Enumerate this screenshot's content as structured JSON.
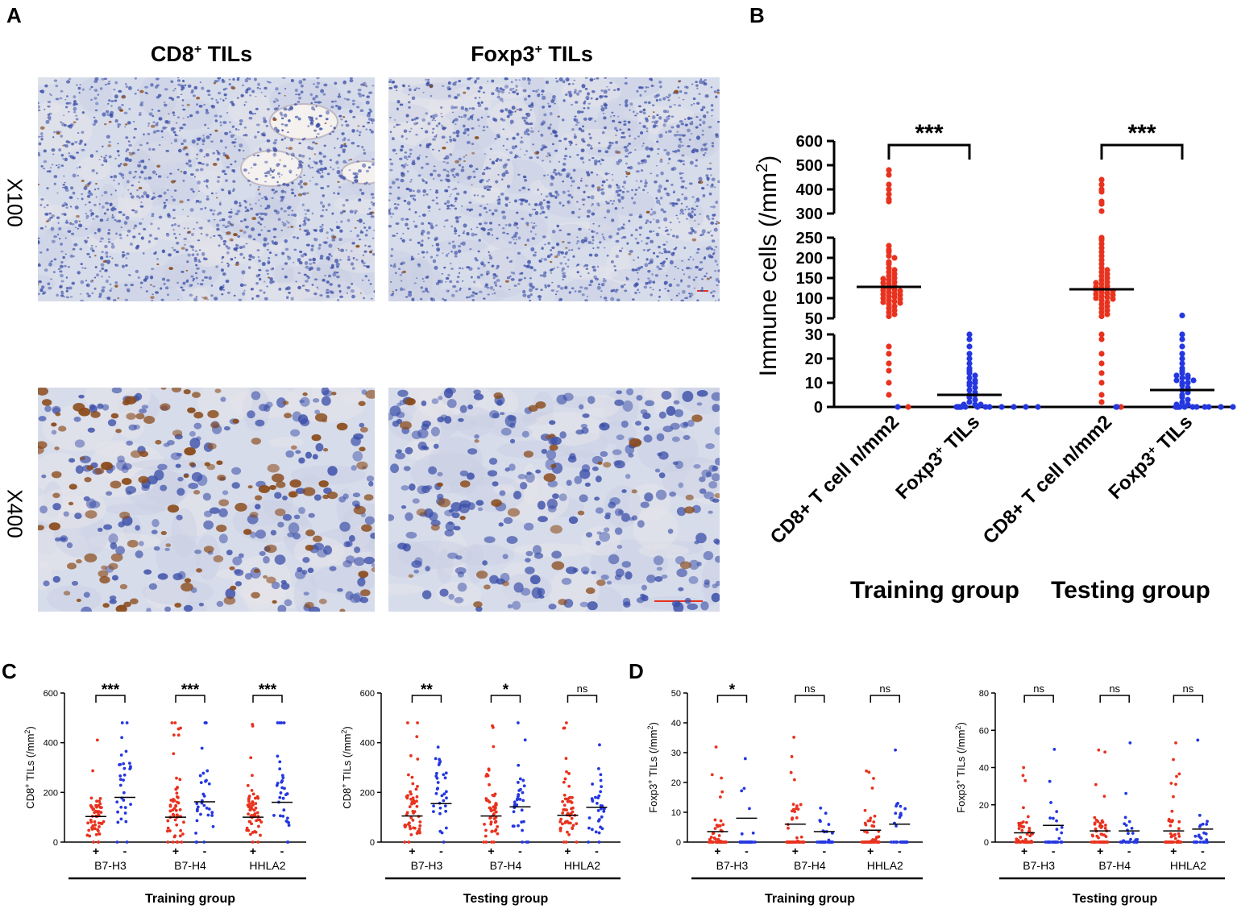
{
  "panels": {
    "A": "A",
    "B": "B",
    "C": "C",
    "D": "D"
  },
  "panelA": {
    "col1": {
      "main": "CD8",
      "sup": "+",
      "rest": " TILs"
    },
    "col2": {
      "main": "Foxp3",
      "sup": "+",
      "rest": " TILs"
    },
    "row1": "X100",
    "row2": "X400"
  },
  "colors": {
    "pos": "#e8321e",
    "neg": "#2437e0",
    "ihc_bg": "#d7dcea",
    "nuclei": "#3a4ea8",
    "brown": "#8a4a1a"
  },
  "chart_data": [
    {
      "id": "B",
      "type": "scatter",
      "ylabel": "Immune cells (/mm",
      "ylabel_sup": "2",
      "ylabel_close": ")",
      "y_segments": [
        {
          "range": [
            0,
            30
          ],
          "ticks": [
            0,
            10,
            20,
            30
          ]
        },
        {
          "range": [
            50,
            250
          ],
          "ticks": [
            50,
            100,
            150,
            200,
            250
          ]
        },
        {
          "range": [
            300,
            600
          ],
          "ticks": [
            300,
            400,
            500,
            600
          ]
        }
      ],
      "categories": [
        "CD8+ T cell n/mm2",
        "Foxp3",
        "CD8+ T cell n/mm2",
        "Foxp3"
      ],
      "category_sup": [
        "",
        "+ TILs",
        "",
        "+ TILs"
      ],
      "groups": [
        "Training group",
        "Testing group"
      ],
      "series": [
        {
          "name": "CD8+ T cell n/mm2",
          "group": "Training group",
          "mean": 128,
          "color": "pos",
          "values": [
            480,
            460,
            420,
            400,
            380,
            360,
            350,
            230,
            220,
            215,
            205,
            200,
            190,
            185,
            175,
            170,
            165,
            160,
            155,
            150,
            148,
            145,
            140,
            138,
            135,
            130,
            128,
            125,
            122,
            120,
            118,
            115,
            112,
            110,
            108,
            105,
            103,
            100,
            98,
            95,
            92,
            90,
            88,
            85,
            80,
            75,
            70,
            65,
            60,
            55,
            25,
            22,
            18,
            15,
            10,
            5,
            0
          ]
        },
        {
          "name": "Foxp3+ TILs",
          "group": "Training group",
          "mean": 5,
          "color": "neg",
          "values": [
            30,
            28,
            25,
            22,
            20,
            18,
            16,
            15,
            14,
            13,
            12,
            11,
            10,
            10,
            9,
            8,
            7,
            6,
            5,
            5,
            4,
            3,
            2,
            1,
            1,
            1,
            0,
            0,
            0,
            0,
            0,
            0,
            0,
            0,
            0,
            0,
            0,
            0,
            0,
            0,
            0,
            0
          ]
        },
        {
          "name": "CD8+ T cell n/mm2",
          "group": "Testing group",
          "mean": 122,
          "color": "pos",
          "values": [
            440,
            420,
            400,
            390,
            350,
            340,
            310,
            250,
            245,
            235,
            225,
            215,
            205,
            195,
            185,
            175,
            170,
            165,
            160,
            155,
            150,
            145,
            140,
            138,
            135,
            130,
            128,
            125,
            122,
            120,
            118,
            115,
            112,
            110,
            108,
            105,
            102,
            100,
            98,
            95,
            90,
            85,
            80,
            75,
            70,
            65,
            60,
            55,
            30,
            28,
            22,
            18,
            14,
            10,
            5,
            2,
            0
          ]
        },
        {
          "name": "Foxp3+ TILs",
          "group": "Testing group",
          "mean": 7,
          "color": "neg",
          "values": [
            57,
            30,
            28,
            25,
            22,
            20,
            18,
            16,
            15,
            14,
            13,
            13,
            12,
            12,
            11,
            11,
            10,
            10,
            9,
            8,
            7,
            6,
            5,
            4,
            3,
            2,
            1,
            1,
            0,
            0,
            0,
            0,
            0,
            0,
            0,
            0,
            0,
            0,
            0,
            0,
            0,
            0,
            0,
            0
          ]
        }
      ],
      "significance": [
        "***",
        "***"
      ]
    },
    {
      "id": "C-training",
      "type": "scatter",
      "ylabel": "CD8",
      "ylabel_sup": "+",
      "ylabel_rest": " TILs (/mm",
      "ylabel_sup2": "2",
      "ylabel_close": ")",
      "ylim": [
        0,
        600
      ],
      "yticks": [
        0,
        200,
        400,
        600
      ],
      "markers": [
        "B7-H3",
        "B7-H4",
        "HHLA2"
      ],
      "signs": [
        "+",
        "-"
      ],
      "group": "Training group",
      "means": [
        [
          103,
          180
        ],
        [
          100,
          162
        ],
        [
          100,
          160
        ]
      ],
      "significance": [
        "***",
        "***",
        "***"
      ]
    },
    {
      "id": "C-testing",
      "type": "scatter",
      "ylabel": "CD8",
      "ylabel_sup": "+",
      "ylabel_rest": " TILs (/mm",
      "ylabel_sup2": "2",
      "ylabel_close": ")",
      "ylim": [
        0,
        600
      ],
      "yticks": [
        0,
        200,
        400,
        600
      ],
      "markers": [
        "B7-H3",
        "B7-H4",
        "HHLA2"
      ],
      "signs": [
        "+",
        "-"
      ],
      "group": "Testing group",
      "means": [
        [
          105,
          155
        ],
        [
          105,
          142
        ],
        [
          108,
          140
        ]
      ],
      "significance": [
        "**",
        "*",
        "ns"
      ]
    },
    {
      "id": "D-training",
      "type": "scatter",
      "ylabel": "Foxp3",
      "ylabel_sup": "+",
      "ylabel_rest": " TILs (/mm",
      "ylabel_sup2": "2",
      "ylabel_close": ")",
      "ylim": [
        0,
        50
      ],
      "yticks": [
        0,
        10,
        20,
        30,
        40,
        50
      ],
      "markers": [
        "B7-H3",
        "B7-H4",
        "HHLA2"
      ],
      "signs": [
        "+",
        "-"
      ],
      "group": "Training group",
      "means": [
        [
          3.5,
          8
        ],
        [
          6,
          3.5
        ],
        [
          4,
          6
        ]
      ],
      "significance": [
        "*",
        "ns",
        "ns"
      ]
    },
    {
      "id": "D-testing",
      "type": "scatter",
      "ylabel": "Foxp3",
      "ylabel_sup": "+",
      "ylabel_rest": " TILs (/mm",
      "ylabel_sup2": "2",
      "ylabel_close": ")",
      "ylim": [
        0,
        80
      ],
      "yticks": [
        0,
        20,
        40,
        60,
        80
      ],
      "markers": [
        "B7-H3",
        "B7-H4",
        "HHLA2"
      ],
      "signs": [
        "+",
        "-"
      ],
      "group": "Testing group",
      "means": [
        [
          5,
          9
        ],
        [
          6,
          6
        ],
        [
          6,
          7
        ]
      ],
      "significance": [
        "ns",
        "ns",
        "ns"
      ]
    }
  ]
}
